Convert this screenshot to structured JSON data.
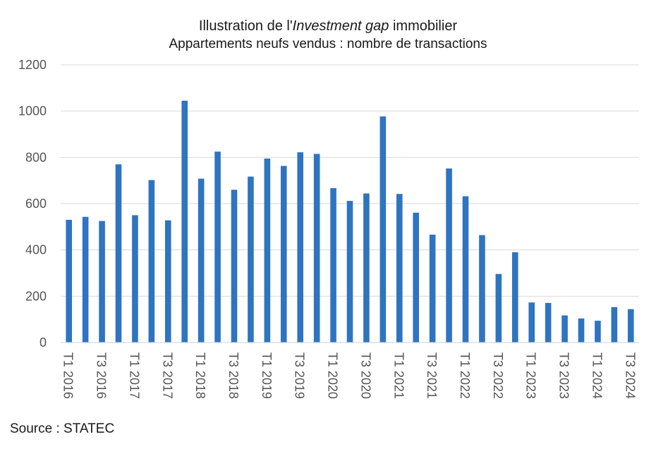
{
  "chart_data": {
    "type": "bar",
    "title_prefix": "Illustration de l'",
    "title_emph": "Investment gap",
    "title_suffix": " immobilier",
    "subtitle": "Appartements neufs vendus : nombre de transactions",
    "categories": [
      "T1 2016",
      "T2 2016",
      "T3 2016",
      "T4 2016",
      "T1 2017",
      "T2 2017",
      "T3 2017",
      "T4 2017",
      "T1 2018",
      "T2 2018",
      "T3 2018",
      "T4 2018",
      "T1 2019",
      "T2 2019",
      "T3 2019",
      "T4 2019",
      "T1 2020",
      "T2 2020",
      "T3 2020",
      "T4 2020",
      "T1 2021",
      "T2 2021",
      "T3 2021",
      "T4 2021",
      "T1 2022",
      "T2 2022",
      "T3 2022",
      "T4 2022",
      "T1 2023",
      "T2 2023",
      "T3 2023",
      "T4 2023",
      "T1 2024",
      "T2 2024",
      "T3 2024"
    ],
    "tick_labels": [
      "T1 2016",
      "T3 2016",
      "T1 2017",
      "T3 2017",
      "T1 2018",
      "T3 2018",
      "T1 2019",
      "T3 2019",
      "T1 2020",
      "T3 2020",
      "T1 2021",
      "T3 2021",
      "T1 2022",
      "T3 2022",
      "T1 2023",
      "T3 2023",
      "T1 2024",
      "T3 2024"
    ],
    "values": [
      530,
      543,
      525,
      770,
      550,
      702,
      528,
      1045,
      708,
      825,
      660,
      717,
      795,
      763,
      822,
      815,
      667,
      612,
      644,
      977,
      642,
      561,
      466,
      752,
      632,
      464,
      296,
      390,
      173,
      171,
      117,
      104,
      94,
      153,
      144
    ],
    "ylim": [
      0,
      1200
    ],
    "yticks": [
      0,
      200,
      400,
      600,
      800,
      1000,
      1200
    ],
    "grid": true,
    "legend": "none",
    "bar_color": "#2e74c0"
  },
  "source": "Source : STATEC"
}
